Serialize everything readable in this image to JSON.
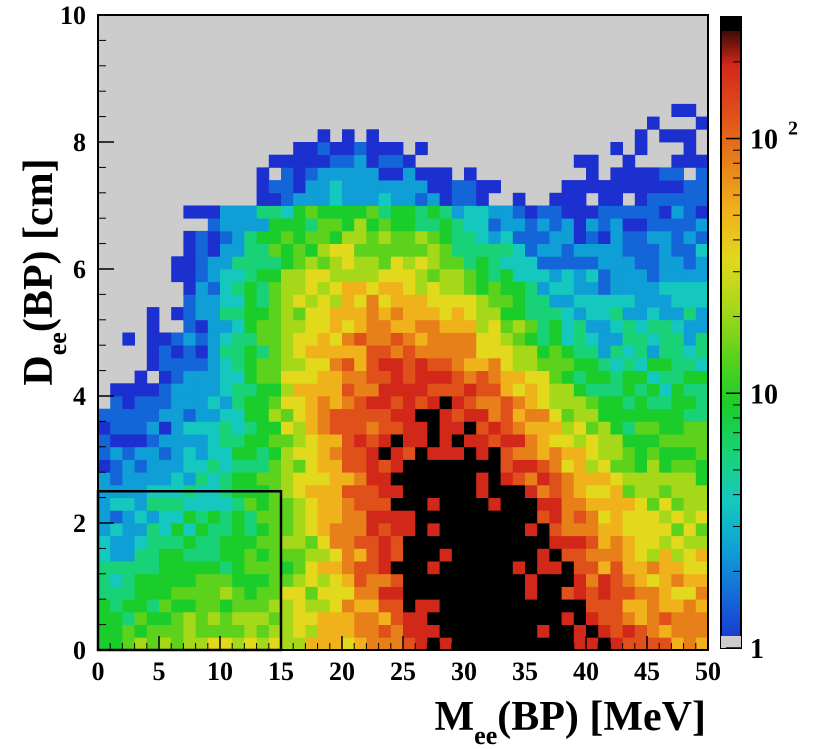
{
  "chart_data": {
    "type": "heatmap",
    "title": "",
    "x_label": {
      "main": "M",
      "sub": "ee",
      "rest": "(BP) [MeV]"
    },
    "y_label": {
      "main": "D",
      "sub": "ee",
      "rest": "(BP) [cm]"
    },
    "x_range": [
      0,
      50
    ],
    "y_range": [
      0,
      10
    ],
    "x_bins": 50,
    "y_bins": 50,
    "x_ticks": [
      "0",
      "5",
      "10",
      "15",
      "20",
      "25",
      "30",
      "35",
      "40",
      "45",
      "50"
    ],
    "y_ticks": [
      "0",
      "2",
      "4",
      "6",
      "8",
      "10"
    ],
    "z_scale": "log",
    "z_range": [
      1,
      300
    ],
    "z_ticks": [
      {
        "value": 1,
        "base": "1",
        "exp": ""
      },
      {
        "value": 10,
        "base": "10",
        "exp": ""
      },
      {
        "value": 100,
        "base": "10",
        "exp": "2"
      }
    ],
    "empty_bin_color": "#cccccc",
    "distribution": {
      "peak_x": 31.5,
      "peak_y": 1.35,
      "peak_counts": 320,
      "description_note": "broad 2D density, highest near x=31.5, y=1.35, falling off with a long tail toward large y"
    },
    "selection_box": {
      "x_min": 0,
      "x_max": 15,
      "y_min": 0,
      "y_max": 2.5
    },
    "palette": [
      "#cccccc",
      "#1c2fcf",
      "#1466d8",
      "#0f9fd6",
      "#14c8c0",
      "#19d278",
      "#1acd2a",
      "#5cd21c",
      "#a6d81a",
      "#e2d81c",
      "#f0b21a",
      "#e8801a",
      "#e0501a",
      "#d2281a",
      "#000000"
    ]
  }
}
